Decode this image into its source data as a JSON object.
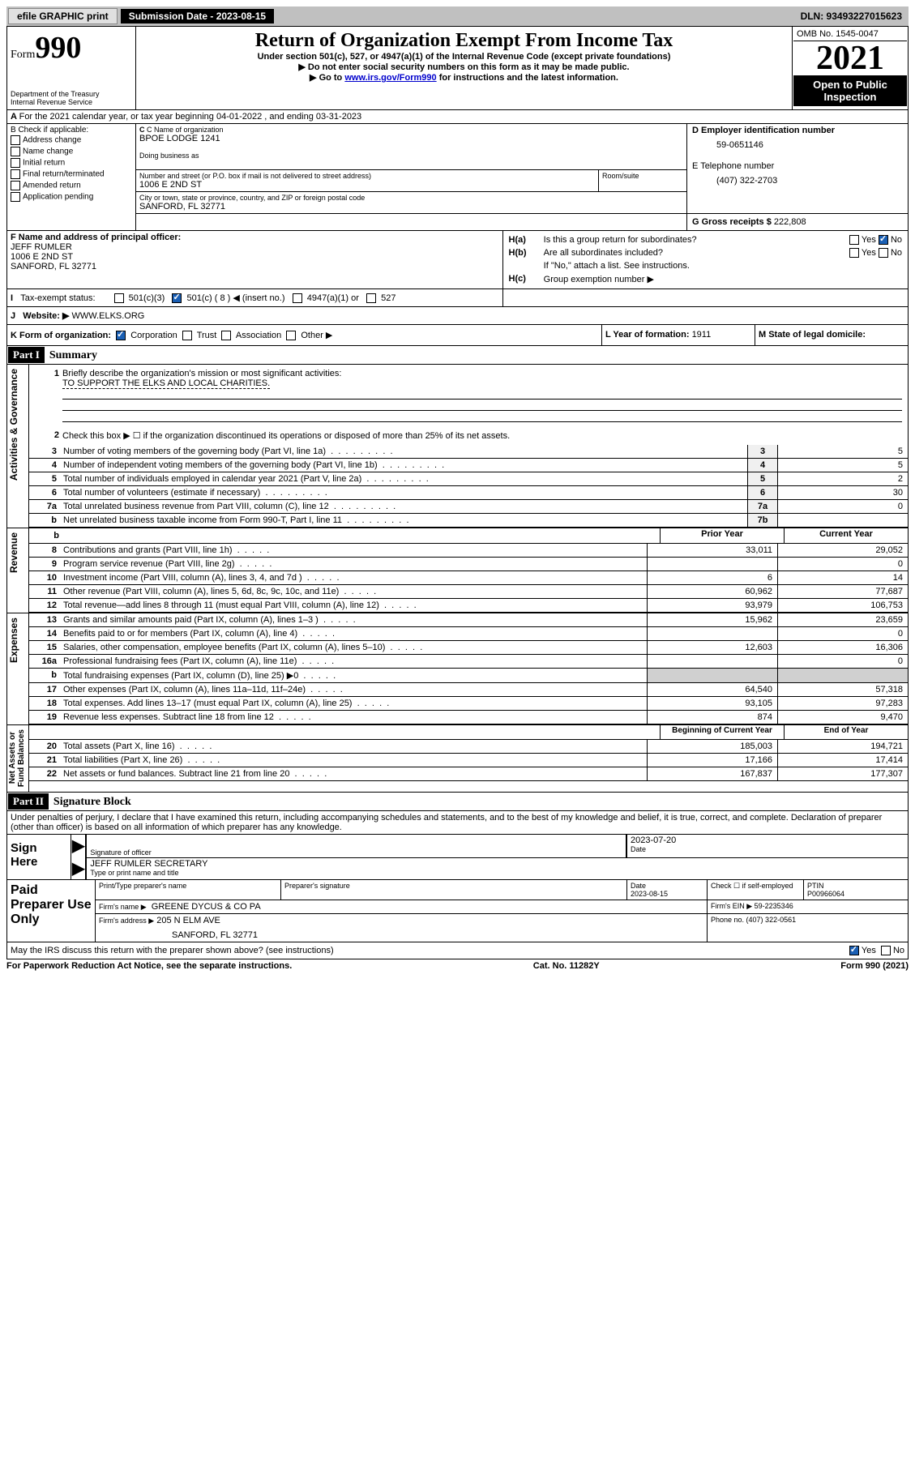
{
  "topbar": {
    "efile": "efile GRAPHIC print",
    "submission_label": "Submission Date - 2023-08-15",
    "dln_label": "DLN: 93493227015623"
  },
  "header": {
    "form_prefix": "Form",
    "form_no": "990",
    "dept": "Department of the Treasury",
    "irs": "Internal Revenue Service",
    "title": "Return of Organization Exempt From Income Tax",
    "sub1": "Under section 501(c), 527, or 4947(a)(1) of the Internal Revenue Code (except private foundations)",
    "sub2": "▶ Do not enter social security numbers on this form as it may be made public.",
    "sub3_a": "▶ Go to ",
    "sub3_link": "www.irs.gov/Form990",
    "sub3_b": " for instructions and the latest information.",
    "omb": "OMB No. 1545-0047",
    "year": "2021",
    "open_pub": "Open to Public Inspection"
  },
  "lineA": "For the 2021 calendar year, or tax year beginning 04-01-2022    , and ending 03-31-2023",
  "boxB": {
    "label": "B Check if applicable:",
    "items": [
      "Address change",
      "Name change",
      "Initial return",
      "Final return/terminated",
      "Amended return",
      "Application pending"
    ]
  },
  "boxC": {
    "name_label": "C Name of organization",
    "name": "BPOE LODGE 1241",
    "dba_label": "Doing business as",
    "street_label": "Number and street (or P.O. box if mail is not delivered to street address)",
    "room_label": "Room/suite",
    "street": "1006 E 2ND ST",
    "city_label": "City or town, state or province, country, and ZIP or foreign postal code",
    "city": "SANFORD, FL  32771"
  },
  "boxD": {
    "label": "D Employer identification number",
    "val": "59-0651146"
  },
  "boxE": {
    "label": "E Telephone number",
    "val": "(407) 322-2703"
  },
  "boxG": {
    "label": "G Gross receipts $ ",
    "val": "222,808"
  },
  "boxF": {
    "label": "F Name and address of principal officer:",
    "name": "JEFF RUMLER",
    "street": "1006 E 2ND ST",
    "city": "SANFORD, FL  32771"
  },
  "boxH": {
    "a": "Is this a group return for subordinates?",
    "b": "Are all subordinates included?",
    "b_note": "If \"No,\" attach a list. See instructions.",
    "c": "Group exemption number ▶"
  },
  "lineI": {
    "label": "Tax-exempt status:",
    "opts": [
      "501(c)(3)",
      "501(c) ( 8 ) ◀ (insert no.)",
      "4947(a)(1) or",
      "527"
    ]
  },
  "lineJ": {
    "label": "Website: ▶",
    "val": "WWW.ELKS.ORG"
  },
  "lineK": {
    "label": "K Form of organization:",
    "opts": [
      "Corporation",
      "Trust",
      "Association",
      "Other ▶"
    ]
  },
  "lineL": {
    "label": "L Year of formation: ",
    "val": "1911"
  },
  "lineM": "M State of legal domicile:",
  "part1": {
    "hdr": "Part I",
    "title": "Summary",
    "q1": "Briefly describe the organization's mission or most significant activities:",
    "q1_ans": "TO SUPPORT THE ELKS AND LOCAL CHARITIES.",
    "q2": "Check this box ▶ ☐  if the organization discontinued its operations or disposed of more than 25% of its net assets.",
    "rows_gov": [
      {
        "n": "3",
        "t": "Number of voting members of the governing body (Part VI, line 1a)",
        "box": "3",
        "v": "5"
      },
      {
        "n": "4",
        "t": "Number of independent voting members of the governing body (Part VI, line 1b)",
        "box": "4",
        "v": "5"
      },
      {
        "n": "5",
        "t": "Total number of individuals employed in calendar year 2021 (Part V, line 2a)",
        "box": "5",
        "v": "2"
      },
      {
        "n": "6",
        "t": "Total number of volunteers (estimate if necessary)",
        "box": "6",
        "v": "30"
      },
      {
        "n": "7a",
        "t": "Total unrelated business revenue from Part VIII, column (C), line 12",
        "box": "7a",
        "v": "0"
      },
      {
        "n": "b",
        "t": "Net unrelated business taxable income from Form 990-T, Part I, line 11",
        "box": "7b",
        "v": ""
      }
    ],
    "col_prior": "Prior Year",
    "col_curr": "Current Year",
    "rows_rev": [
      {
        "n": "8",
        "t": "Contributions and grants (Part VIII, line 1h)",
        "p": "33,011",
        "c": "29,052"
      },
      {
        "n": "9",
        "t": "Program service revenue (Part VIII, line 2g)",
        "p": "",
        "c": "0"
      },
      {
        "n": "10",
        "t": "Investment income (Part VIII, column (A), lines 3, 4, and 7d )",
        "p": "6",
        "c": "14"
      },
      {
        "n": "11",
        "t": "Other revenue (Part VIII, column (A), lines 5, 6d, 8c, 9c, 10c, and 11e)",
        "p": "60,962",
        "c": "77,687"
      },
      {
        "n": "12",
        "t": "Total revenue—add lines 8 through 11 (must equal Part VIII, column (A), line 12)",
        "p": "93,979",
        "c": "106,753"
      }
    ],
    "rows_exp": [
      {
        "n": "13",
        "t": "Grants and similar amounts paid (Part IX, column (A), lines 1–3 )",
        "p": "15,962",
        "c": "23,659"
      },
      {
        "n": "14",
        "t": "Benefits paid to or for members (Part IX, column (A), line 4)",
        "p": "",
        "c": "0"
      },
      {
        "n": "15",
        "t": "Salaries, other compensation, employee benefits (Part IX, column (A), lines 5–10)",
        "p": "12,603",
        "c": "16,306"
      },
      {
        "n": "16a",
        "t": "Professional fundraising fees (Part IX, column (A), line 11e)",
        "p": "",
        "c": "0"
      },
      {
        "n": "b",
        "t": "Total fundraising expenses (Part IX, column (D), line 25) ▶0",
        "p": "",
        "c": "",
        "shade": true
      },
      {
        "n": "17",
        "t": "Other expenses (Part IX, column (A), lines 11a–11d, 11f–24e)",
        "p": "64,540",
        "c": "57,318"
      },
      {
        "n": "18",
        "t": "Total expenses. Add lines 13–17 (must equal Part IX, column (A), line 25)",
        "p": "93,105",
        "c": "97,283"
      },
      {
        "n": "19",
        "t": "Revenue less expenses. Subtract line 18 from line 12",
        "p": "874",
        "c": "9,470"
      }
    ],
    "col_beg": "Beginning of Current Year",
    "col_end": "End of Year",
    "rows_net": [
      {
        "n": "20",
        "t": "Total assets (Part X, line 16)",
        "p": "185,003",
        "c": "194,721"
      },
      {
        "n": "21",
        "t": "Total liabilities (Part X, line 26)",
        "p": "17,166",
        "c": "17,414"
      },
      {
        "n": "22",
        "t": "Net assets or fund balances. Subtract line 21 from line 20",
        "p": "167,837",
        "c": "177,307"
      }
    ]
  },
  "part2": {
    "hdr": "Part II",
    "title": "Signature Block",
    "decl": "Under penalties of perjury, I declare that I have examined this return, including accompanying schedules and statements, and to the best of my knowledge and belief, it is true, correct, and complete. Declaration of preparer (other than officer) is based on all information of which preparer has any knowledge.",
    "sign_here": "Sign Here",
    "sig_officer": "Signature of officer",
    "sig_date_label": "Date",
    "sig_date": "2023-07-20",
    "officer_name": "JEFF RUMLER  SECRETARY",
    "type_name": "Type or print name and title",
    "paid": "Paid Preparer Use Only",
    "prep_name_label": "Print/Type preparer's name",
    "prep_sig_label": "Preparer's signature",
    "prep_date_label": "Date",
    "prep_date": "2023-08-15",
    "check_if": "Check ☐ if self-employed",
    "ptin_label": "PTIN",
    "ptin": "P00966064",
    "firm_name_label": "Firm's name    ▶",
    "firm_name": "GREENE DYCUS & CO PA",
    "firm_ein_label": "Firm's EIN ▶",
    "firm_ein": "59-2235346",
    "firm_addr_label": "Firm's address ▶",
    "firm_addr1": "205 N ELM AVE",
    "firm_addr2": "SANFORD, FL  32771",
    "phone_label": "Phone no. ",
    "phone": "(407) 322-0561",
    "discuss": "May the IRS discuss this return with the preparer shown above? (see instructions)"
  },
  "footer": {
    "left": "For Paperwork Reduction Act Notice, see the separate instructions.",
    "mid": "Cat. No. 11282Y",
    "right": "Form 990 (2021)"
  }
}
